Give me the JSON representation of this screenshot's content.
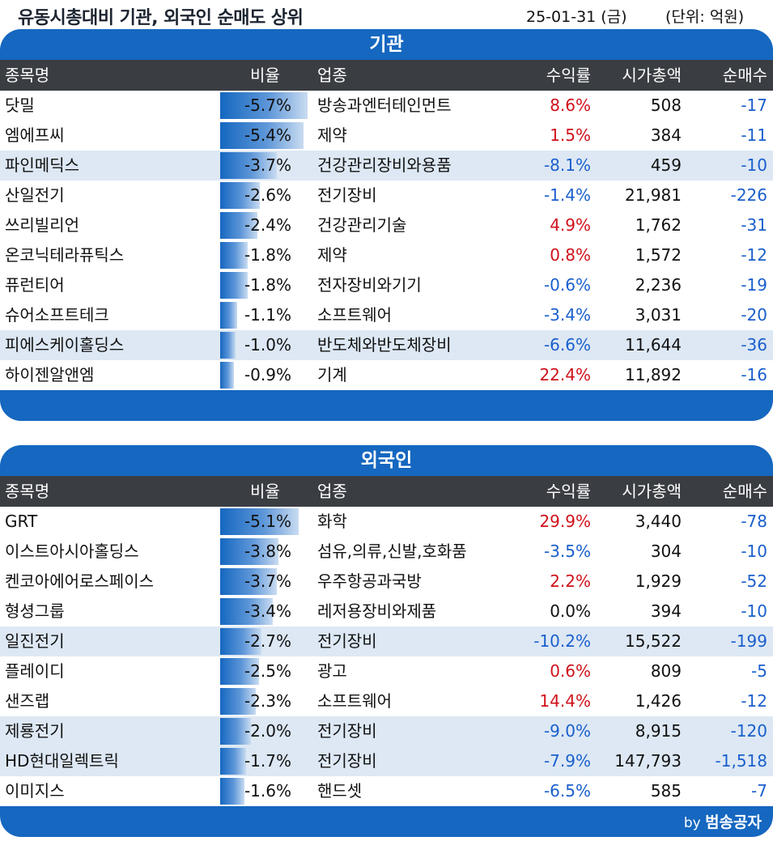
{
  "header": {
    "title": "유동시총대비 기관, 외국인 순매도 상위",
    "date": "25-01-31 (금)",
    "unit": "(단위: 억원)"
  },
  "columns": {
    "name": "종목명",
    "ratio": "비율",
    "sector": "업종",
    "return": "수익률",
    "market_cap": "시가총액",
    "net_sell": "순매수"
  },
  "colors": {
    "panel_blue": "#1567c0",
    "header_dark": "#3a3d42",
    "row_shade": "#dde8f4",
    "positive": "#d0121b",
    "negative": "#1a5fcc"
  },
  "institution": {
    "title": "기관",
    "rows": [
      {
        "name": "닷밀",
        "ratio": "-5.7%",
        "ratio_value": 5.7,
        "sector": "방송과엔터테인먼트",
        "return": "8.6%",
        "sign": "pos",
        "market_cap": "508",
        "net": "-17",
        "shade": false
      },
      {
        "name": "엠에프씨",
        "ratio": "-5.4%",
        "ratio_value": 5.4,
        "sector": "제약",
        "return": "1.5%",
        "sign": "pos",
        "market_cap": "384",
        "net": "-11",
        "shade": false
      },
      {
        "name": "파인메딕스",
        "ratio": "-3.7%",
        "ratio_value": 3.7,
        "sector": "건강관리장비와용품",
        "return": "-8.1%",
        "sign": "neg",
        "market_cap": "459",
        "net": "-10",
        "shade": true
      },
      {
        "name": "산일전기",
        "ratio": "-2.6%",
        "ratio_value": 2.6,
        "sector": "전기장비",
        "return": "-1.4%",
        "sign": "neg",
        "market_cap": "21,981",
        "net": "-226",
        "shade": false
      },
      {
        "name": "쓰리빌리언",
        "ratio": "-2.4%",
        "ratio_value": 2.4,
        "sector": "건강관리기술",
        "return": "4.9%",
        "sign": "pos",
        "market_cap": "1,762",
        "net": "-31",
        "shade": false
      },
      {
        "name": "온코닉테라퓨틱스",
        "ratio": "-1.8%",
        "ratio_value": 1.8,
        "sector": "제약",
        "return": "0.8%",
        "sign": "pos",
        "market_cap": "1,572",
        "net": "-12",
        "shade": false
      },
      {
        "name": "퓨런티어",
        "ratio": "-1.8%",
        "ratio_value": 1.8,
        "sector": "전자장비와기기",
        "return": "-0.6%",
        "sign": "neg",
        "market_cap": "2,236",
        "net": "-19",
        "shade": false
      },
      {
        "name": "슈어소프트테크",
        "ratio": "-1.1%",
        "ratio_value": 1.1,
        "sector": "소프트웨어",
        "return": "-3.4%",
        "sign": "neg",
        "market_cap": "3,031",
        "net": "-20",
        "shade": false
      },
      {
        "name": "피에스케이홀딩스",
        "ratio": "-1.0%",
        "ratio_value": 1.0,
        "sector": "반도체와반도체장비",
        "return": "-6.6%",
        "sign": "neg",
        "market_cap": "11,644",
        "net": "-36",
        "shade": true
      },
      {
        "name": "하이젠알앤엠",
        "ratio": "-0.9%",
        "ratio_value": 0.9,
        "sector": "기계",
        "return": "22.4%",
        "sign": "pos",
        "market_cap": "11,892",
        "net": "-16",
        "shade": false
      }
    ]
  },
  "foreign": {
    "title": "외국인",
    "rows": [
      {
        "name": "GRT",
        "ratio": "-5.1%",
        "ratio_value": 5.1,
        "sector": "화학",
        "return": "29.9%",
        "sign": "pos",
        "market_cap": "3,440",
        "net": "-78",
        "shade": false
      },
      {
        "name": "이스트아시아홀딩스",
        "ratio": "-3.8%",
        "ratio_value": 3.8,
        "sector": "섬유,의류,신발,호화품",
        "return": "-3.5%",
        "sign": "neg",
        "market_cap": "304",
        "net": "-10",
        "shade": false
      },
      {
        "name": "켄코아에어로스페이스",
        "ratio": "-3.7%",
        "ratio_value": 3.7,
        "sector": "우주항공과국방",
        "return": "2.2%",
        "sign": "pos",
        "market_cap": "1,929",
        "net": "-52",
        "shade": false
      },
      {
        "name": "형셩그룹",
        "ratio": "-3.4%",
        "ratio_value": 3.4,
        "sector": "레저용장비와제품",
        "return": "0.0%",
        "sign": "zero",
        "market_cap": "394",
        "net": "-10",
        "shade": false
      },
      {
        "name": "일진전기",
        "ratio": "-2.7%",
        "ratio_value": 2.7,
        "sector": "전기장비",
        "return": "-10.2%",
        "sign": "neg",
        "market_cap": "15,522",
        "net": "-199",
        "shade": true
      },
      {
        "name": "플레이디",
        "ratio": "-2.5%",
        "ratio_value": 2.5,
        "sector": "광고",
        "return": "0.6%",
        "sign": "pos",
        "market_cap": "809",
        "net": "-5",
        "shade": false
      },
      {
        "name": "샌즈랩",
        "ratio": "-2.3%",
        "ratio_value": 2.3,
        "sector": "소프트웨어",
        "return": "14.4%",
        "sign": "pos",
        "market_cap": "1,426",
        "net": "-12",
        "shade": false
      },
      {
        "name": "제룡전기",
        "ratio": "-2.0%",
        "ratio_value": 2.0,
        "sector": "전기장비",
        "return": "-9.0%",
        "sign": "neg",
        "market_cap": "8,915",
        "net": "-120",
        "shade": true
      },
      {
        "name": "HD현대일렉트릭",
        "ratio": "-1.7%",
        "ratio_value": 1.7,
        "sector": "전기장비",
        "return": "-7.9%",
        "sign": "neg",
        "market_cap": "147,793",
        "net": "-1,518",
        "shade": true
      },
      {
        "name": "이미지스",
        "ratio": "-1.6%",
        "ratio_value": 1.6,
        "sector": "핸드셋",
        "return": "-6.5%",
        "sign": "neg",
        "market_cap": "585",
        "net": "-7",
        "shade": false
      }
    ]
  },
  "footer": {
    "credit_prefix": "by",
    "credit_name": "범송공자"
  }
}
